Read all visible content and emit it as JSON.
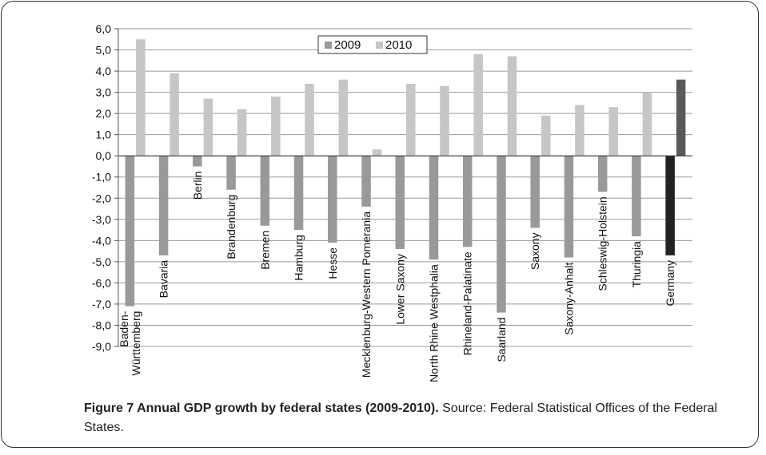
{
  "chart_data": {
    "type": "bar",
    "title": "",
    "xlabel": "",
    "ylabel": "",
    "ylim": [
      -9,
      6
    ],
    "ytick_step": 1,
    "ytick_labels": [
      "6,0",
      "5,0",
      "4,0",
      "3,0",
      "2,0",
      "1,0",
      "0,0",
      "-1,0",
      "-2,0",
      "-3,0",
      "-4,0",
      "-5,0",
      "-6,0",
      "-7,0",
      "-8,0",
      "-9,0"
    ],
    "grid": true,
    "legend_position": "top-center",
    "categories": [
      "Baden-\nWürttemberg",
      "Bavaria",
      "Berlin",
      "Brandenburg",
      "Bremen",
      "Hamburg",
      "Hesse",
      "Mecklenburg-Western Pomerania",
      "Lower Saxony",
      "North Rhine Westphalia",
      "Rhineland-Palatinate",
      "Saarland",
      "Saxony",
      "Saxony-Anhalt",
      "Schleswig-Holstein",
      "Thuringia",
      "Germany"
    ],
    "series": [
      {
        "name": "2009",
        "color": "#999999",
        "highlight_color": "#222222",
        "values": [
          -7.1,
          -4.7,
          -0.5,
          -1.6,
          -3.3,
          -3.5,
          -4.1,
          -2.4,
          -4.4,
          -4.9,
          -4.3,
          -7.4,
          -3.4,
          -4.8,
          -1.7,
          -3.8,
          -4.7
        ]
      },
      {
        "name": "2010",
        "color": "#c6c6c6",
        "highlight_color": "#595959",
        "values": [
          5.5,
          3.9,
          2.7,
          2.2,
          2.8,
          3.4,
          3.6,
          0.3,
          3.4,
          3.3,
          4.8,
          4.7,
          1.9,
          2.4,
          2.3,
          3.0,
          3.6
        ]
      }
    ],
    "highlight_category": "Germany"
  },
  "caption": {
    "label": "Figure 7 Annual GDP growth by federal states (2009-2010).",
    "text": " Source: Federal Statistical Offices of the Federal States."
  }
}
